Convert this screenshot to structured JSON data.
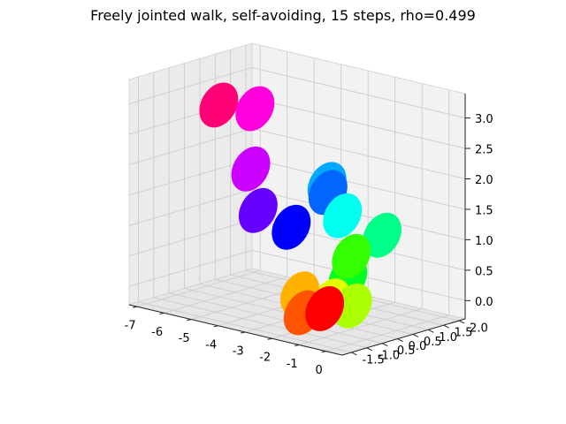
{
  "chart_data": {
    "type": "scatter",
    "projection": "3d",
    "title": "Freely jointed walk, self-avoiding, 15 steps, rho=0.499",
    "xlabel": "",
    "ylabel": "",
    "zlabel": "",
    "grid": true,
    "xlim": [
      -7.3,
      0.6
    ],
    "ylim": [
      -1.8,
      2.2
    ],
    "zlim": [
      -0.3,
      3.4
    ],
    "x_ticks": [
      "-7",
      "-6",
      "-5",
      "-4",
      "-3",
      "-2",
      "-1",
      "0"
    ],
    "y_ticks": [
      "-1.5",
      "-1.0",
      "-0.5",
      "0.0",
      "0.5",
      "1.0",
      "1.5",
      "2.0"
    ],
    "z_ticks": [
      "0.0",
      "0.5",
      "1.0",
      "1.5",
      "2.0",
      "2.5",
      "3.0"
    ],
    "marker_shape": "disc",
    "points": [
      {
        "step": 0,
        "x": -0.45,
        "y": -1.45,
        "z": 0.3,
        "color": "#ff0000"
      },
      {
        "step": 1,
        "x": -1.25,
        "y": -1.45,
        "z": 0.15,
        "color": "#ff5500"
      },
      {
        "step": 2,
        "x": -2.0,
        "y": -0.9,
        "z": 0.3,
        "color": "#ffb300"
      },
      {
        "step": 3,
        "x": -1.3,
        "y": -0.5,
        "z": 0.2,
        "color": "#e0ff00"
      },
      {
        "step": 4,
        "x": -0.5,
        "y": -0.5,
        "z": 0.2,
        "color": "#aaff00"
      },
      {
        "step": 5,
        "x": -1.0,
        "y": -0.1,
        "z": 0.9,
        "color": "#33ff00"
      },
      {
        "step": 6,
        "x": -1.7,
        "y": 0.4,
        "z": 0.4,
        "color": "#00ff22"
      },
      {
        "step": 7,
        "x": -1.0,
        "y": 0.9,
        "z": 1.1,
        "color": "#00ff88"
      },
      {
        "step": 8,
        "x": -1.9,
        "y": 0.4,
        "z": 1.4,
        "color": "#00ffee"
      },
      {
        "step": 9,
        "x": -2.7,
        "y": 0.6,
        "z": 1.8,
        "color": "#00aaff"
      },
      {
        "step": 10,
        "x": -2.55,
        "y": 0.5,
        "z": 1.7,
        "color": "#0066ff"
      },
      {
        "step": 11,
        "x": -3.0,
        "y": -0.3,
        "z": 1.2,
        "color": "#0000ff"
      },
      {
        "step": 12,
        "x": -4.0,
        "y": -0.5,
        "z": 1.4,
        "color": "#6600ff"
      },
      {
        "step": 13,
        "x": -4.5,
        "y": -0.3,
        "z": 2.0,
        "color": "#cc00ff"
      },
      {
        "step": 14,
        "x": -4.8,
        "y": 0.1,
        "z": 2.9,
        "color": "#ff00dd"
      },
      {
        "step": 15,
        "x": -5.8,
        "y": -0.2,
        "z": 2.9,
        "color": "#ff0077"
      }
    ]
  }
}
